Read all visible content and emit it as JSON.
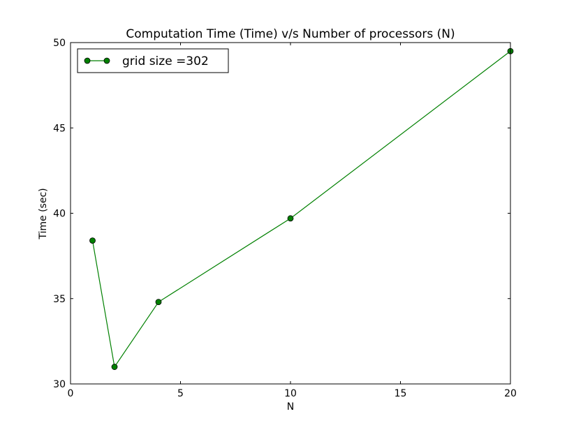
{
  "chart_data": {
    "type": "line",
    "title": "Computation Time (Time) v/s Number of processors (N)",
    "xlabel": "N",
    "ylabel": "Time (sec)",
    "xlim": [
      0,
      20
    ],
    "ylim": [
      30,
      50
    ],
    "xticks": [
      0,
      5,
      10,
      15,
      20
    ],
    "yticks": [
      30,
      35,
      40,
      45,
      50
    ],
    "grid": false,
    "legend_position": "top-left",
    "series": [
      {
        "name": "grid size =302",
        "color": "#008000",
        "marker": "circle",
        "x": [
          1,
          2,
          4,
          10,
          20
        ],
        "y": [
          38.4,
          31.0,
          34.8,
          39.7,
          49.5
        ]
      }
    ]
  }
}
